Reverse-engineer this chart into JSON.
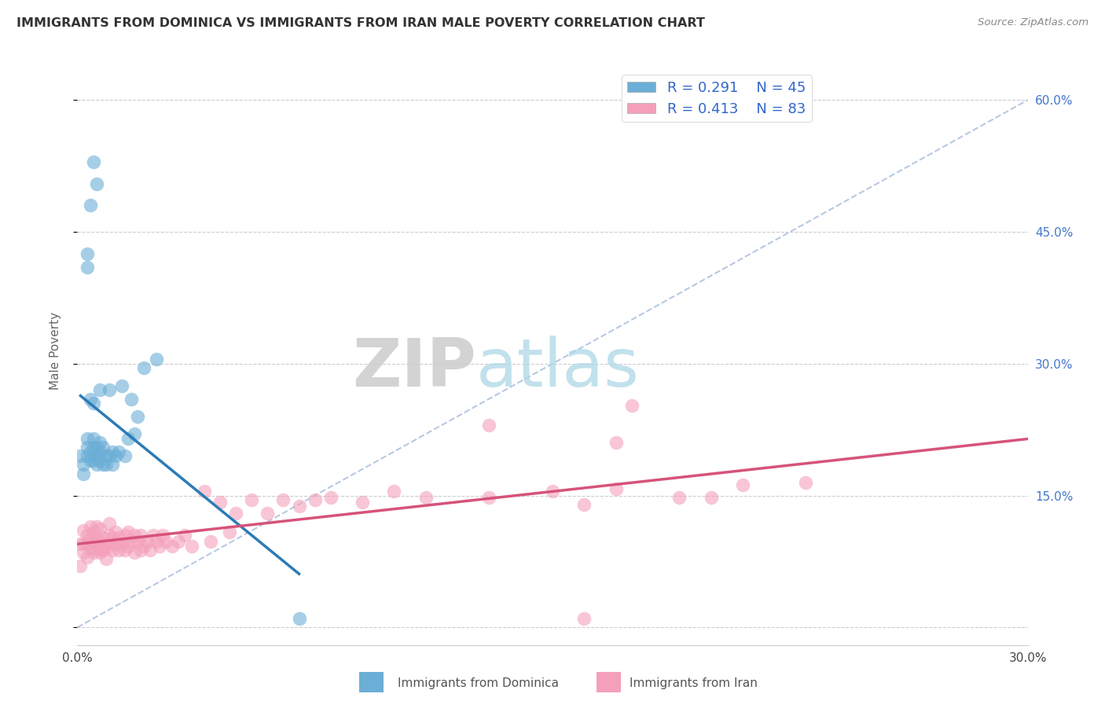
{
  "title": "IMMIGRANTS FROM DOMINICA VS IMMIGRANTS FROM IRAN MALE POVERTY CORRELATION CHART",
  "source": "Source: ZipAtlas.com",
  "ylabel": "Male Poverty",
  "xlim": [
    0.0,
    0.3
  ],
  "ylim": [
    -0.02,
    0.65
  ],
  "dominica_R": 0.291,
  "dominica_N": 45,
  "iran_R": 0.413,
  "iran_N": 83,
  "dominica_color": "#6baed6",
  "iran_color": "#f4a0bb",
  "dominica_line_color": "#2c7bb6",
  "iran_line_color": "#d6537a",
  "diagonal_color": "#b0c4de",
  "background_color": "#ffffff",
  "legend_label_dominica": "Immigrants from Dominica",
  "legend_label_iran": "Immigrants from Iran",
  "dominica_x": [
    0.001,
    0.002,
    0.002,
    0.003,
    0.003,
    0.003,
    0.004,
    0.004,
    0.005,
    0.005,
    0.005,
    0.005,
    0.006,
    0.006,
    0.006,
    0.007,
    0.007,
    0.007,
    0.008,
    0.008,
    0.009,
    0.009,
    0.01,
    0.01,
    0.011,
    0.011,
    0.012,
    0.013,
    0.014,
    0.015,
    0.016,
    0.017,
    0.018,
    0.019,
    0.021,
    0.025,
    0.003,
    0.006,
    0.004,
    0.003,
    0.004,
    0.005,
    0.07,
    0.005,
    0.007
  ],
  "dominica_y": [
    0.195,
    0.175,
    0.185,
    0.195,
    0.205,
    0.215,
    0.19,
    0.2,
    0.195,
    0.205,
    0.215,
    0.19,
    0.205,
    0.185,
    0.195,
    0.21,
    0.2,
    0.19,
    0.185,
    0.205,
    0.195,
    0.185,
    0.195,
    0.27,
    0.2,
    0.185,
    0.195,
    0.2,
    0.275,
    0.195,
    0.215,
    0.26,
    0.22,
    0.24,
    0.295,
    0.305,
    0.425,
    0.505,
    0.26,
    0.41,
    0.48,
    0.53,
    0.01,
    0.255,
    0.27
  ],
  "iran_x": [
    0.001,
    0.001,
    0.002,
    0.002,
    0.002,
    0.003,
    0.003,
    0.003,
    0.004,
    0.004,
    0.004,
    0.005,
    0.005,
    0.005,
    0.006,
    0.006,
    0.006,
    0.007,
    0.007,
    0.007,
    0.008,
    0.008,
    0.008,
    0.009,
    0.009,
    0.01,
    0.01,
    0.01,
    0.011,
    0.011,
    0.012,
    0.012,
    0.013,
    0.013,
    0.014,
    0.015,
    0.015,
    0.016,
    0.016,
    0.017,
    0.018,
    0.018,
    0.019,
    0.02,
    0.02,
    0.021,
    0.022,
    0.023,
    0.024,
    0.025,
    0.026,
    0.027,
    0.028,
    0.03,
    0.032,
    0.034,
    0.036,
    0.04,
    0.042,
    0.045,
    0.048,
    0.05,
    0.055,
    0.06,
    0.065,
    0.07,
    0.075,
    0.08,
    0.09,
    0.1,
    0.11,
    0.13,
    0.15,
    0.17,
    0.19,
    0.21,
    0.23,
    0.13,
    0.175,
    0.2,
    0.16,
    0.17,
    0.16
  ],
  "iran_y": [
    0.095,
    0.07,
    0.085,
    0.095,
    0.11,
    0.08,
    0.095,
    0.105,
    0.09,
    0.1,
    0.115,
    0.085,
    0.095,
    0.108,
    0.09,
    0.1,
    0.115,
    0.085,
    0.098,
    0.112,
    0.09,
    0.102,
    0.088,
    0.095,
    0.078,
    0.092,
    0.105,
    0.118,
    0.088,
    0.102,
    0.095,
    0.108,
    0.088,
    0.102,
    0.095,
    0.088,
    0.105,
    0.092,
    0.108,
    0.098,
    0.085,
    0.105,
    0.098,
    0.088,
    0.105,
    0.092,
    0.098,
    0.088,
    0.105,
    0.098,
    0.092,
    0.105,
    0.098,
    0.092,
    0.098,
    0.105,
    0.092,
    0.155,
    0.098,
    0.142,
    0.108,
    0.13,
    0.145,
    0.13,
    0.145,
    0.138,
    0.145,
    0.148,
    0.142,
    0.155,
    0.148,
    0.148,
    0.155,
    0.158,
    0.148,
    0.162,
    0.165,
    0.23,
    0.252,
    0.148,
    0.14,
    0.21,
    0.01
  ]
}
